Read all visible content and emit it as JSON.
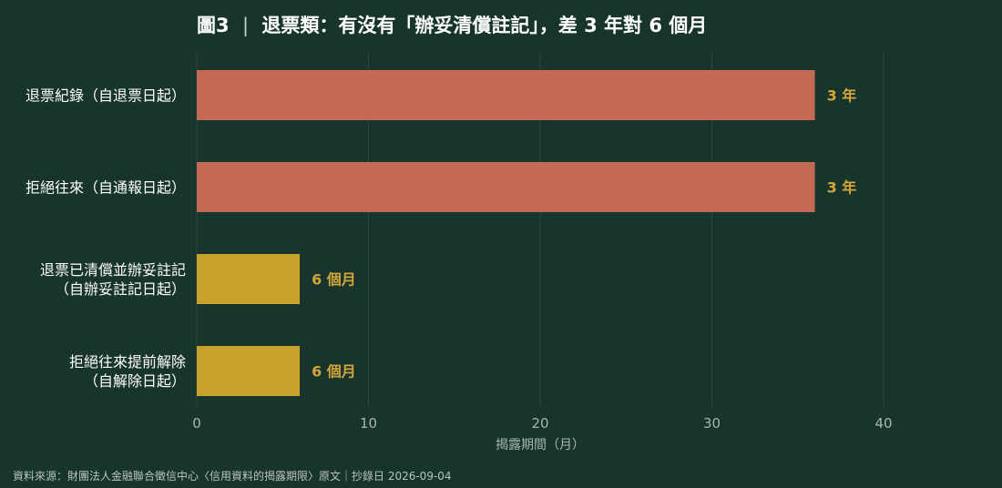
{
  "chart_data": {
    "type": "bar",
    "orientation": "horizontal",
    "title_prefix": "圖3",
    "title_separator": "|",
    "title": "退票類：有沒有「辦妥清償註記」，差 3 年對 6 個月",
    "categories": [
      [
        "退票紀錄（自退票日起）"
      ],
      [
        "拒絕往來（自通報日起）"
      ],
      [
        "退票已清償並辦妥註記",
        "（自辦妥註記日起）"
      ],
      [
        "拒絕往來提前解除",
        "（自解除日起）"
      ]
    ],
    "values": [
      36,
      36,
      6,
      6
    ],
    "value_labels": [
      "3 年",
      "3 年",
      "6 個月",
      "6 個月"
    ],
    "bar_colors": [
      "#c46a55",
      "#c46a55",
      "#c9a22a",
      "#c9a22a"
    ],
    "value_label_color": "#d4a63a",
    "xlabel": "揭露期間（月）",
    "ylabel": "",
    "xlim": [
      0,
      40
    ],
    "xticks": [
      0,
      10,
      20,
      30,
      40
    ],
    "grid": true,
    "gridline_color": "#2a4a41"
  },
  "source": "資料來源：財團法人金融聯合徵信中心〈信用資料的揭露期限〉原文｜抄錄日 2026-09-04",
  "colors": {
    "background": "#17342d",
    "text": "#ffffff",
    "muted_text": "#a9b6ad"
  }
}
